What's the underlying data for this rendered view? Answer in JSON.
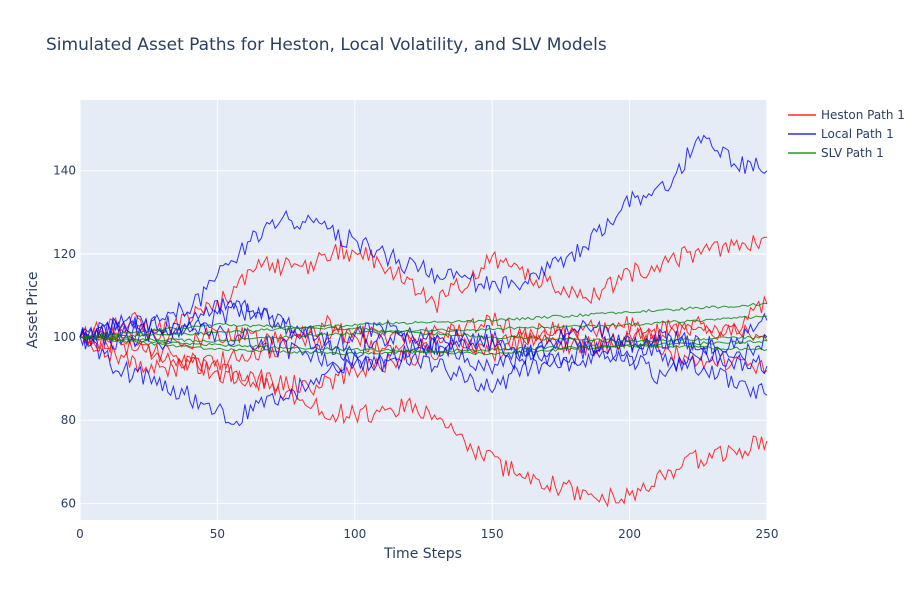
{
  "chart_data": {
    "type": "line",
    "title": "Simulated Asset Paths for Heston, Local Volatility, and SLV Models",
    "xlabel": "Time Steps",
    "ylabel": "Asset Price",
    "xlim": [
      0,
      250
    ],
    "ylim": [
      56,
      157
    ],
    "xticks": [
      0,
      50,
      100,
      150,
      200,
      250
    ],
    "yticks": [
      60,
      80,
      100,
      120,
      140
    ],
    "grid": true,
    "legend_position": "top-right",
    "plot_background": "#e5ecf6",
    "colors": {
      "heston": "#ff0000",
      "local": "#0000ff",
      "slv": "#008000"
    },
    "legend": [
      {
        "label": "Heston Path 1",
        "color": "#ff0000"
      },
      {
        "label": "Local Path 1",
        "color": "#0000ff"
      },
      {
        "label": "SLV Path 1",
        "color": "#008000"
      }
    ],
    "series": [
      {
        "group": "heston",
        "x": [
          0,
          20,
          40,
          50,
          70,
          90,
          110,
          130,
          150,
          170,
          190,
          210,
          230,
          250
        ],
        "y": [
          100,
          104,
          98,
          101,
          99,
          103,
          97,
          101,
          96,
          102,
          98,
          101,
          103,
          99
        ]
      },
      {
        "group": "heston",
        "x": [
          0,
          25,
          45,
          65,
          85,
          105,
          125,
          150,
          175,
          200,
          215,
          235,
          250
        ],
        "y": [
          100,
          97,
          92,
          90,
          88,
          93,
          96,
          99,
          101,
          103,
          96,
          94,
          92
        ]
      },
      {
        "group": "heston",
        "x": [
          0,
          25,
          50,
          75,
          100,
          125,
          150,
          175,
          200,
          220,
          235,
          250
        ],
        "y": [
          100,
          92,
          94,
          98,
          101,
          99,
          104,
          97,
          99,
          103,
          101,
          108
        ]
      },
      {
        "group": "heston",
        "x": [
          0,
          20,
          35,
          55,
          65,
          80,
          95,
          110,
          130,
          150,
          165,
          185,
          200,
          215,
          235,
          250
        ],
        "y": [
          100,
          101,
          103,
          110,
          118,
          116,
          121,
          118,
          108,
          119,
          114,
          110,
          115,
          119,
          121,
          124
        ]
      },
      {
        "group": "heston",
        "x": [
          0,
          20,
          40,
          55,
          70,
          85,
          100,
          110,
          120,
          130,
          140,
          150,
          160,
          175,
          185,
          195,
          205,
          220,
          235,
          250
        ],
        "y": [
          100,
          98,
          94,
          91,
          88,
          83,
          81,
          82,
          84,
          80,
          74,
          70,
          67,
          64,
          62,
          61,
          63,
          70,
          72,
          75
        ]
      },
      {
        "group": "local",
        "x": [
          0,
          15,
          30,
          50,
          70,
          90,
          110,
          130,
          150,
          160,
          180,
          200,
          210,
          225,
          240,
          250
        ],
        "y": [
          100,
          103,
          99,
          108,
          104,
          97,
          103,
          98,
          92,
          95,
          99,
          94,
          100,
          98,
          95,
          100
        ]
      },
      {
        "group": "local",
        "x": [
          0,
          15,
          30,
          45,
          60,
          75,
          100,
          120,
          140,
          160,
          180,
          200,
          215,
          225,
          235,
          250
        ],
        "y": [
          100,
          102,
          104,
          110,
          122,
          129,
          123,
          117,
          113,
          112,
          120,
          133,
          136,
          148,
          143,
          140
        ]
      },
      {
        "group": "local",
        "x": [
          0,
          15,
          30,
          45,
          55,
          75,
          95,
          110,
          130,
          150,
          165,
          185,
          200,
          215,
          235,
          250
        ],
        "y": [
          100,
          92,
          89,
          84,
          80,
          86,
          94,
          100,
          97,
          101,
          96,
          103,
          97,
          100,
          97,
          104
        ]
      },
      {
        "group": "local",
        "x": [
          0,
          20,
          40,
          60,
          80,
          100,
          120,
          140,
          150,
          160,
          180,
          195,
          210,
          230,
          250
        ],
        "y": [
          100,
          99,
          101,
          100,
          96,
          93,
          95,
          91,
          87,
          92,
          95,
          100,
          96,
          92,
          86
        ]
      },
      {
        "group": "local",
        "x": [
          0,
          20,
          40,
          60,
          75,
          90,
          105,
          120,
          140,
          160,
          180,
          195,
          210,
          225,
          240,
          250
        ],
        "y": [
          100,
          104,
          102,
          107,
          103,
          99,
          93,
          97,
          100,
          96,
          93,
          97,
          91,
          96,
          94,
          93
        ]
      },
      {
        "group": "slv",
        "x": [
          0,
          50,
          100,
          150,
          200,
          250
        ],
        "y": [
          100,
          101,
          103,
          104,
          106,
          108
        ]
      },
      {
        "group": "slv",
        "x": [
          0,
          50,
          100,
          150,
          200,
          250
        ],
        "y": [
          100,
          103,
          102,
          100,
          99,
          100
        ]
      },
      {
        "group": "slv",
        "x": [
          0,
          50,
          100,
          150,
          200,
          250
        ],
        "y": [
          100,
          97,
          96,
          97,
          98,
          99
        ]
      },
      {
        "group": "slv",
        "x": [
          0,
          50,
          100,
          150,
          200,
          250
        ],
        "y": [
          100,
          99,
          101,
          102,
          103,
          105
        ]
      },
      {
        "group": "slv",
        "x": [
          0,
          50,
          100,
          150,
          200,
          250
        ],
        "y": [
          100,
          98,
          97,
          96,
          98,
          97
        ]
      }
    ]
  }
}
